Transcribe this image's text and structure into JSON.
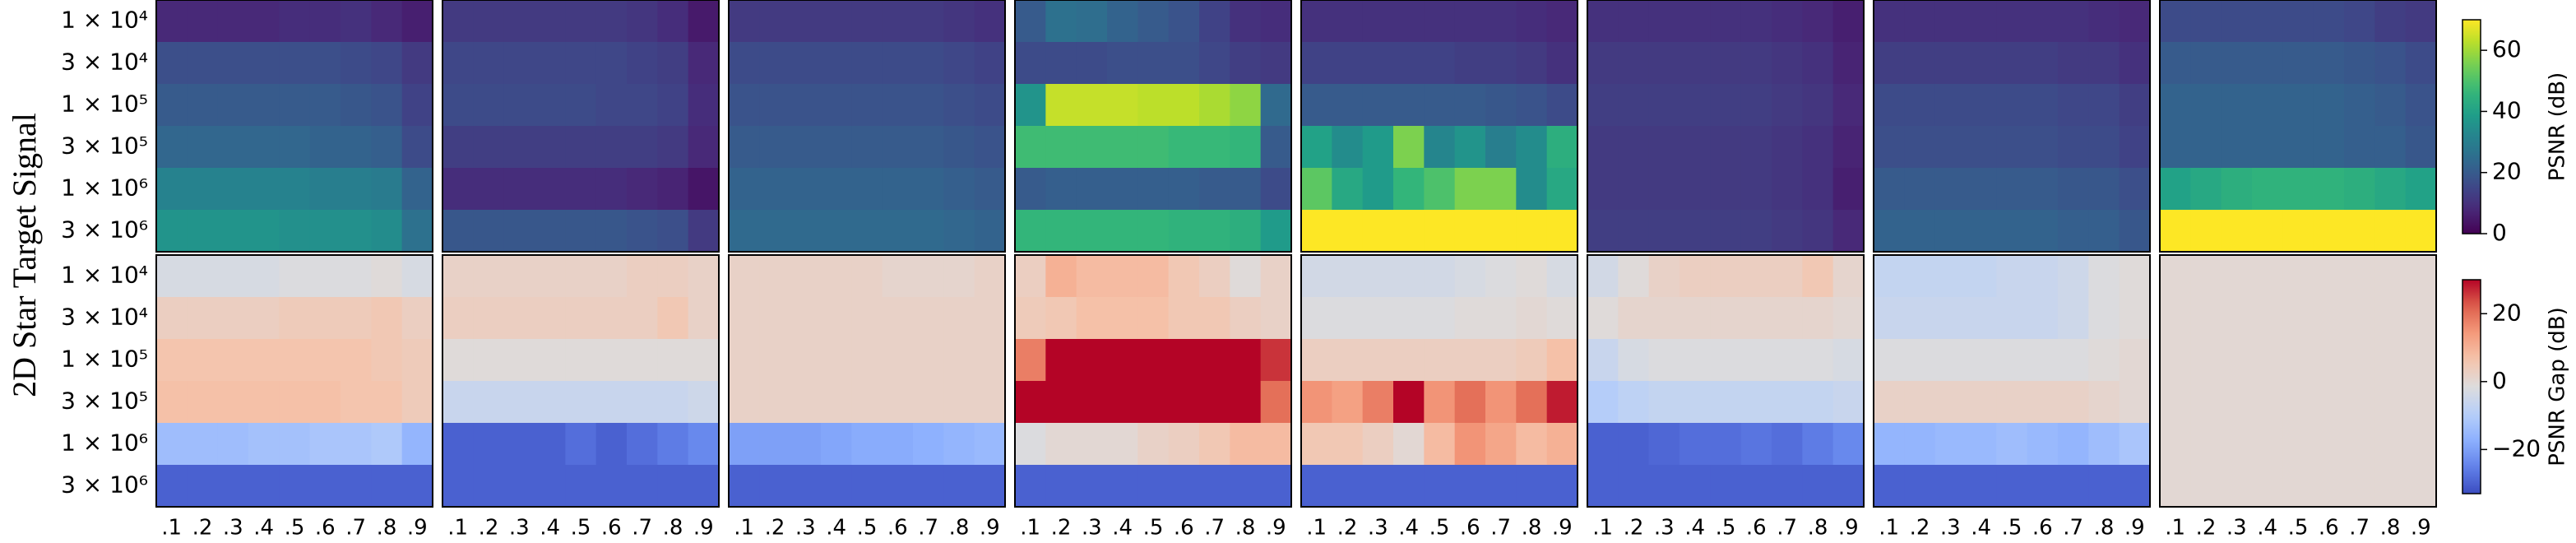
{
  "chart_data": {
    "type": "heatmap",
    "y_label": "2D Star Target Signal",
    "y_categories": [
      "1 × 10⁴",
      "3 × 10⁴",
      "1 × 10⁵",
      "3 × 10⁵",
      "1 × 10⁶",
      "3 × 10⁶"
    ],
    "x_categories": [
      ".1",
      ".2",
      ".3",
      ".4",
      ".5",
      ".6",
      ".7",
      ".8",
      ".9"
    ],
    "rows": [
      {
        "colorbar_label": "PSNR (dB)",
        "colormap": "viridis",
        "clim": [
          0,
          70
        ],
        "cticks": [
          0,
          20,
          40,
          60
        ],
        "panels": [
          [
            [
              8,
              8,
              8,
              8,
              9,
              9,
              10,
              8,
              6
            ],
            [
              17,
              17,
              17,
              17,
              17,
              17,
              16,
              15,
              12
            ],
            [
              20,
              20,
              20,
              20,
              20,
              20,
              19,
              18,
              14
            ],
            [
              23,
              23,
              23,
              23,
              23,
              22,
              22,
              21,
              16
            ],
            [
              31,
              31,
              31,
              31,
              31,
              30,
              30,
              29,
              22
            ],
            [
              36,
              36,
              36,
              36,
              35,
              35,
              35,
              34,
              26
            ]
          ],
          [
            [
              12,
              12,
              12,
              12,
              12,
              12,
              11,
              9,
              5
            ],
            [
              15,
              15,
              15,
              15,
              15,
              15,
              14,
              13,
              8
            ],
            [
              16,
              16,
              16,
              16,
              16,
              15,
              15,
              14,
              9
            ],
            [
              13,
              13,
              13,
              13,
              13,
              13,
              13,
              12,
              8
            ],
            [
              9,
              9,
              9,
              9,
              9,
              9,
              8,
              7,
              4
            ],
            [
              19,
              19,
              19,
              19,
              19,
              19,
              18,
              17,
              12
            ]
          ],
          [
            [
              12,
              12,
              12,
              12,
              12,
              12,
              12,
              11,
              10
            ],
            [
              16,
              16,
              16,
              16,
              16,
              16,
              16,
              15,
              14
            ],
            [
              18,
              18,
              18,
              18,
              18,
              18,
              18,
              17,
              16
            ],
            [
              20,
              20,
              20,
              20,
              20,
              20,
              20,
              19,
              18
            ],
            [
              22,
              22,
              22,
              22,
              22,
              22,
              22,
              21,
              20
            ],
            [
              24,
              24,
              24,
              24,
              24,
              24,
              24,
              23,
              22
            ]
          ],
          [
            [
              20,
              26,
              25,
              22,
              20,
              18,
              14,
              10,
              9
            ],
            [
              16,
              16,
              16,
              17,
              17,
              17,
              15,
              13,
              12
            ],
            [
              36,
              64,
              64,
              64,
              63,
              63,
              61,
              58,
              24
            ],
            [
              48,
              48,
              48,
              48,
              48,
              47,
              47,
              46,
              20
            ],
            [
              20,
              21,
              21,
              21,
              21,
              21,
              20,
              20,
              16
            ],
            [
              46,
              46,
              46,
              46,
              46,
              45,
              45,
              44,
              38
            ]
          ],
          [
            [
              10,
              10,
              10,
              10,
              10,
              10,
              10,
              9,
              8
            ],
            [
              14,
              14,
              14,
              14,
              14,
              13,
              13,
              12,
              10
            ],
            [
              20,
              20,
              20,
              20,
              20,
              20,
              19,
              18,
              16
            ],
            [
              40,
              34,
              38,
              56,
              32,
              36,
              30,
              34,
              44
            ],
            [
              52,
              42,
              38,
              46,
              50,
              56,
              56,
              34,
              42
            ],
            [
              70,
              70,
              70,
              70,
              70,
              70,
              70,
              70,
              70
            ]
          ],
          [
            [
              10,
              10,
              10,
              10,
              10,
              10,
              9,
              8,
              6
            ],
            [
              12,
              12,
              12,
              12,
              12,
              12,
              11,
              10,
              7
            ],
            [
              13,
              13,
              13,
              13,
              13,
              13,
              12,
              11,
              8
            ],
            [
              12,
              12,
              12,
              12,
              12,
              12,
              11,
              10,
              7
            ],
            [
              12,
              12,
              12,
              12,
              12,
              12,
              11,
              10,
              6
            ],
            [
              13,
              13,
              13,
              13,
              13,
              13,
              12,
              11,
              8
            ]
          ],
          [
            [
              10,
              10,
              10,
              10,
              10,
              10,
              10,
              9,
              8
            ],
            [
              13,
              13,
              13,
              13,
              13,
              13,
              12,
              12,
              10
            ],
            [
              16,
              16,
              16,
              16,
              16,
              16,
              15,
              15,
              13
            ],
            [
              17,
              17,
              17,
              17,
              17,
              17,
              16,
              16,
              14
            ],
            [
              20,
              20,
              20,
              20,
              20,
              20,
              19,
              19,
              17
            ],
            [
              22,
              22,
              22,
              22,
              22,
              22,
              21,
              21,
              19
            ]
          ],
          [
            [
              16,
              16,
              16,
              16,
              16,
              16,
              15,
              13,
              12
            ],
            [
              20,
              20,
              20,
              20,
              20,
              20,
              19,
              18,
              16
            ],
            [
              22,
              22,
              22,
              22,
              22,
              22,
              21,
              20,
              18
            ],
            [
              22,
              22,
              22,
              22,
              22,
              22,
              21,
              21,
              19
            ],
            [
              40,
              42,
              44,
              45,
              45,
              45,
              44,
              42,
              40
            ],
            [
              70,
              70,
              70,
              70,
              70,
              70,
              70,
              70,
              70
            ]
          ]
        ]
      },
      {
        "colorbar_label": "PSNR Gap (dB)",
        "colormap": "coolwarm",
        "clim": [
          -33,
          30
        ],
        "cticks": [
          {
            "value": -20,
            "label": "−20"
          },
          0,
          20
        ],
        "panels": [
          [
            [
              -3,
              -3,
              -3,
              -3,
              -2,
              -2,
              -2,
              -1,
              -3
            ],
            [
              3,
              3,
              3,
              3,
              4,
              4,
              4,
              5,
              3
            ],
            [
              6,
              6,
              6,
              6,
              6,
              6,
              6,
              5,
              4
            ],
            [
              7,
              7,
              7,
              7,
              7,
              7,
              6,
              6,
              4
            ],
            [
              -14,
              -14,
              -14,
              -13,
              -13,
              -12,
              -12,
              -11,
              -16
            ],
            [
              -30,
              -30,
              -30,
              -30,
              -30,
              -30,
              -30,
              -30,
              -30
            ]
          ],
          [
            [
              2,
              2,
              2,
              2,
              2,
              2,
              3,
              3,
              2
            ],
            [
              3,
              3,
              3,
              3,
              3,
              3,
              3,
              5,
              2
            ],
            [
              -1,
              -1,
              -1,
              -1,
              -1,
              -1,
              -1,
              -1,
              -1
            ],
            [
              -6,
              -6,
              -6,
              -6,
              -6,
              -6,
              -6,
              -6,
              -5
            ],
            [
              -30,
              -30,
              -30,
              -30,
              -28,
              -30,
              -28,
              -26,
              -24
            ],
            [
              -30,
              -30,
              -30,
              -30,
              -30,
              -30,
              -30,
              -30,
              -30
            ]
          ],
          [
            [
              2,
              2,
              2,
              2,
              2,
              1,
              1,
              1,
              2
            ],
            [
              2,
              2,
              2,
              2,
              2,
              2,
              2,
              2,
              2
            ],
            [
              2,
              2,
              2,
              2,
              2,
              2,
              2,
              2,
              2
            ],
            [
              2,
              2,
              2,
              2,
              2,
              2,
              2,
              2,
              2
            ],
            [
              -20,
              -20,
              -20,
              -19,
              -18,
              -18,
              -17,
              -16,
              -15
            ],
            [
              -30,
              -30,
              -30,
              -30,
              -30,
              -30,
              -30,
              -30,
              -30
            ]
          ],
          [
            [
              3,
              10,
              8,
              8,
              8,
              5,
              3,
              -1,
              2
            ],
            [
              4,
              5,
              7,
              7,
              7,
              5,
              5,
              3,
              2
            ],
            [
              18,
              30,
              30,
              30,
              30,
              30,
              30,
              30,
              26
            ],
            [
              30,
              30,
              30,
              30,
              30,
              30,
              30,
              30,
              20
            ],
            [
              -2,
              0,
              0,
              0,
              2,
              3,
              5,
              8,
              8
            ],
            [
              -30,
              -30,
              -30,
              -30,
              -30,
              -30,
              -30,
              -30,
              -30
            ]
          ],
          [
            [
              -4,
              -4,
              -4,
              -4,
              -4,
              -3,
              -2,
              -1,
              -3
            ],
            [
              -2,
              -2,
              -2,
              -2,
              -2,
              -1,
              -1,
              0,
              -1
            ],
            [
              3,
              3,
              3,
              3,
              3,
              3,
              3,
              4,
              7
            ],
            [
              15,
              13,
              18,
              30,
              15,
              20,
              15,
              20,
              28
            ],
            [
              5,
              5,
              3,
              0,
              8,
              15,
              12,
              8,
              10
            ],
            [
              -30,
              -30,
              -30,
              -30,
              -30,
              -30,
              -30,
              -30,
              -30
            ]
          ],
          [
            [
              -4,
              -1,
              2,
              3,
              3,
              3,
              3,
              5,
              1
            ],
            [
              -1,
              1,
              1,
              1,
              1,
              1,
              1,
              1,
              0
            ],
            [
              -6,
              -3,
              -2,
              -2,
              -2,
              -2,
              -2,
              -2,
              -3
            ],
            [
              -10,
              -8,
              -7,
              -7,
              -7,
              -7,
              -7,
              -7,
              -6
            ],
            [
              -30,
              -30,
              -29,
              -28,
              -28,
              -27,
              -28,
              -26,
              -24
            ],
            [
              -30,
              -30,
              -30,
              -30,
              -30,
              -30,
              -30,
              -30,
              -30
            ]
          ],
          [
            [
              -7,
              -7,
              -7,
              -7,
              -6,
              -6,
              -5,
              -2,
              -1
            ],
            [
              -6,
              -6,
              -6,
              -6,
              -6,
              -6,
              -5,
              -2,
              -1
            ],
            [
              -2,
              -2,
              -2,
              -2,
              -2,
              -2,
              -2,
              -1,
              0
            ],
            [
              2,
              2,
              2,
              2,
              2,
              2,
              2,
              1,
              0
            ],
            [
              -16,
              -16,
              -15,
              -15,
              -14,
              -15,
              -16,
              -14,
              -12
            ],
            [
              -30,
              -30,
              -30,
              -30,
              -30,
              -30,
              -30,
              -30,
              -30
            ]
          ],
          [
            [
              0,
              0,
              0,
              0,
              0,
              0,
              0,
              0,
              0
            ],
            [
              0,
              0,
              0,
              0,
              0,
              0,
              0,
              0,
              0
            ],
            [
              0,
              0,
              0,
              0,
              0,
              0,
              0,
              0,
              0
            ],
            [
              0,
              0,
              0,
              0,
              0,
              0,
              0,
              0,
              0
            ],
            [
              0,
              0,
              0,
              0,
              0,
              0,
              0,
              0,
              0
            ],
            [
              0,
              0,
              0,
              0,
              0,
              0,
              0,
              0,
              0
            ]
          ]
        ]
      }
    ]
  }
}
